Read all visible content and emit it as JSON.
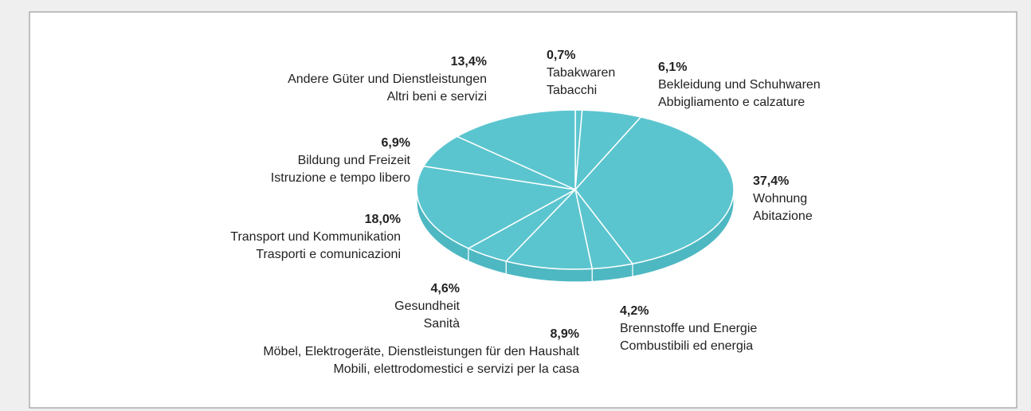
{
  "chart_data": {
    "type": "pie",
    "categories": [
      "Tabakwaren",
      "Bekleidung und Schuhwaren",
      "Wohnung",
      "Brennstoffe und Energie",
      "Möbel, Elektrogeräte, Dienstleistungen für den Haushalt",
      "Gesundheit",
      "Transport und Kommunikation",
      "Bildung und Freizeit",
      "Andere Güter und Dienstleistungen"
    ],
    "subcategories": [
      "Tabacchi",
      "Abbigliamento e calzature",
      "Abitazione",
      "Combustibili ed energia",
      "Mobili, elettrodomestici e servizi per la casa",
      "Sanità",
      "Trasporti e comunicazioni",
      "Istruzione e tempo libero",
      "Altri beni e servizi"
    ],
    "values": [
      0.7,
      6.1,
      37.4,
      4.2,
      8.9,
      4.6,
      18.0,
      6.9,
      13.4
    ],
    "value_labels": [
      "0,7%",
      "6,1%",
      "37,4%",
      "4,2%",
      "8,9%",
      "4,6%",
      "18,0%",
      "6,9%",
      "13,4%"
    ],
    "color": "#5bc5cf"
  }
}
